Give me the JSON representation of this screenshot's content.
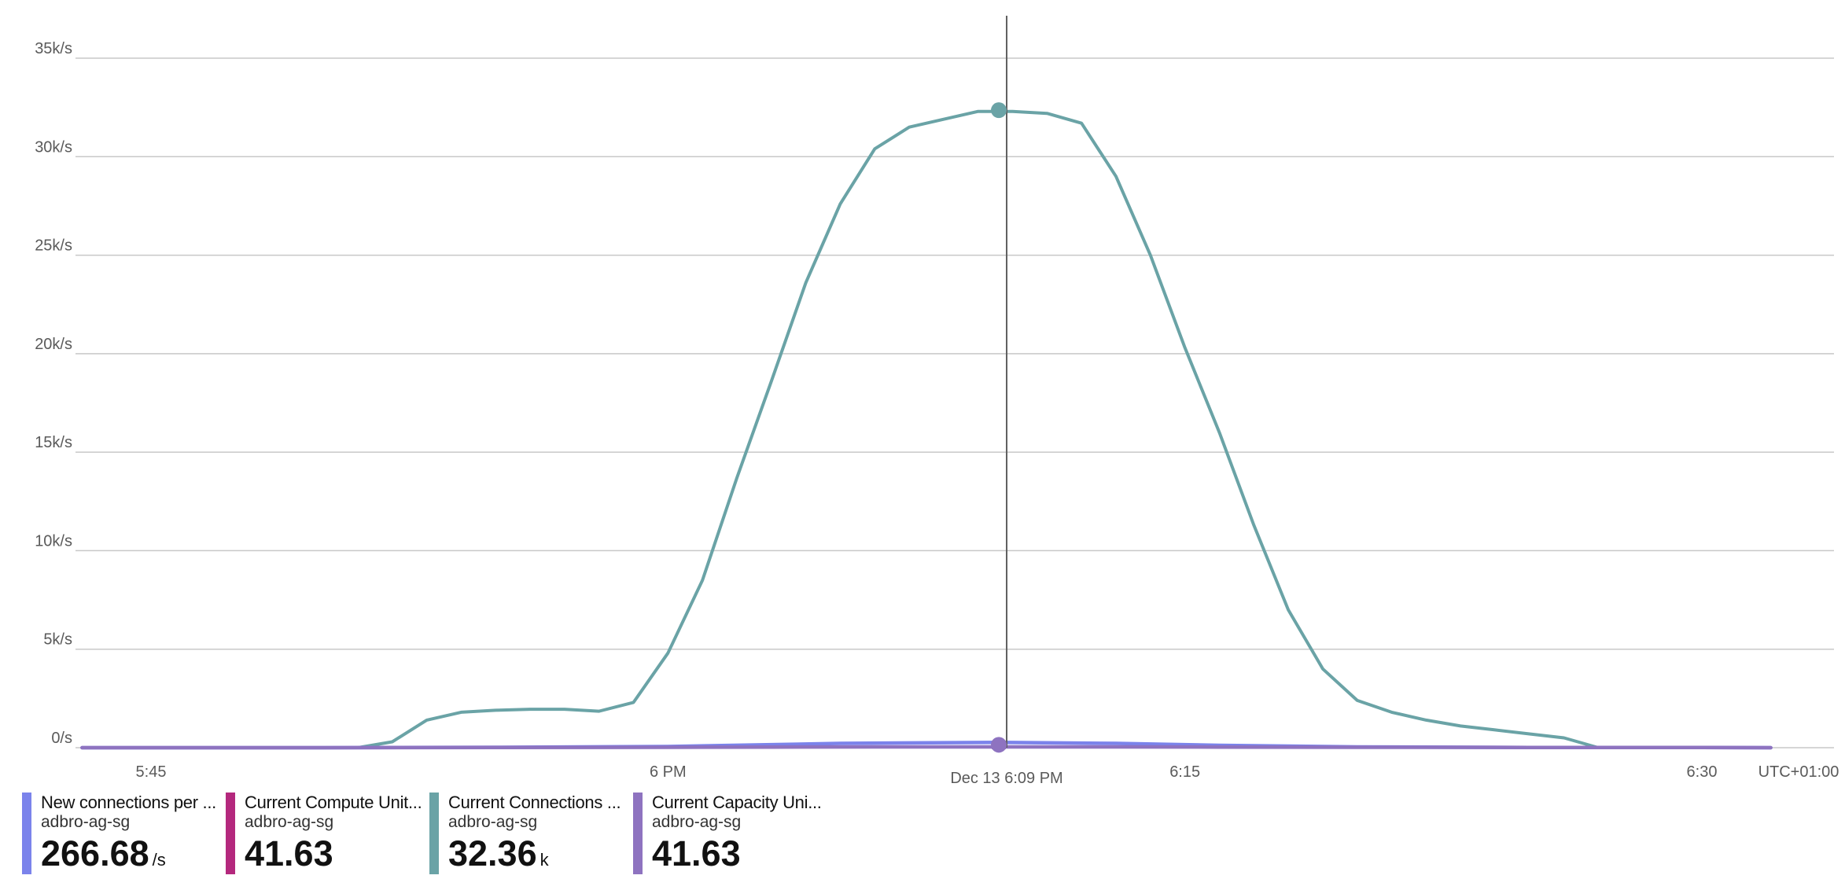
{
  "chart_data": {
    "type": "line",
    "y_ticks": [
      "0/s",
      "5k/s",
      "10k/s",
      "15k/s",
      "20k/s",
      "25k/s",
      "30k/s",
      "35k/s"
    ],
    "ylim": [
      0,
      35000
    ],
    "x_ticks": [
      {
        "t": 15,
        "label": "5:45"
      },
      {
        "t": 30,
        "label": "6 PM"
      },
      {
        "t": 45,
        "label": "6:15"
      },
      {
        "t": 60,
        "label": "6:30"
      }
    ],
    "xlim": [
      12.8,
      62.5
    ],
    "timezone_label": "UTC+01:00",
    "cursor": {
      "t": 39.6,
      "label": "Dec 13 6:09 PM"
    },
    "grid": true,
    "series": [
      {
        "name": "Current Connections ...",
        "color": "#6aa3a6",
        "t": [
          13,
          14,
          15,
          16,
          17,
          18,
          19,
          20,
          21,
          22,
          23,
          24,
          25,
          26,
          27,
          28,
          29,
          30,
          31,
          32,
          33,
          34,
          35,
          36,
          37,
          38,
          39,
          40,
          41,
          42,
          43,
          44,
          45,
          46,
          47,
          48,
          49,
          50,
          51,
          52,
          53,
          54,
          55,
          56,
          57,
          58,
          59,
          60,
          61,
          62
        ],
        "values": [
          0,
          0,
          0,
          0,
          0,
          0,
          0,
          0,
          0,
          300,
          1400,
          1800,
          1900,
          1950,
          1950,
          1850,
          2300,
          4800,
          8500,
          13700,
          18600,
          23600,
          27600,
          30400,
          31500,
          31900,
          32300,
          32300,
          32200,
          31700,
          29000,
          25000,
          20300,
          16000,
          11300,
          7000,
          4000,
          2400,
          1800,
          1400,
          1100,
          900,
          700,
          500,
          0,
          0,
          0,
          0,
          0,
          0
        ]
      },
      {
        "name": "New connections per ...",
        "color": "#7b83eb",
        "t": [
          13,
          15,
          20,
          25,
          30,
          35,
          39.6,
          43,
          46,
          50,
          55,
          60,
          62
        ],
        "values": [
          0,
          0,
          0,
          20,
          60,
          220,
          266.68,
          220,
          120,
          40,
          10,
          10,
          0
        ]
      },
      {
        "name": "Current Capacity Uni...",
        "color": "#8e73c0",
        "t": [
          13,
          15,
          20,
          25,
          30,
          33,
          36,
          39.6,
          43,
          46,
          50,
          55,
          60,
          62
        ],
        "values": [
          0,
          0,
          0,
          10,
          20,
          30,
          40,
          41.63,
          40,
          30,
          20,
          10,
          10,
          0
        ]
      }
    ]
  },
  "legend": [
    {
      "name": "New connections per ...",
      "resource": "adbro-ag-sg",
      "value": "266.68",
      "unit": "/s",
      "color": "#7b83eb"
    },
    {
      "name": "Current Compute Unit...",
      "resource": "adbro-ag-sg",
      "value": "41.63",
      "unit": "",
      "color": "#b4287d"
    },
    {
      "name": "Current Connections ...",
      "resource": "adbro-ag-sg",
      "value": "32.36",
      "unit": "k",
      "color": "#6aa3a6"
    },
    {
      "name": "Current Capacity Uni...",
      "resource": "adbro-ag-sg",
      "value": "41.63",
      "unit": "",
      "color": "#8e73c0"
    }
  ]
}
